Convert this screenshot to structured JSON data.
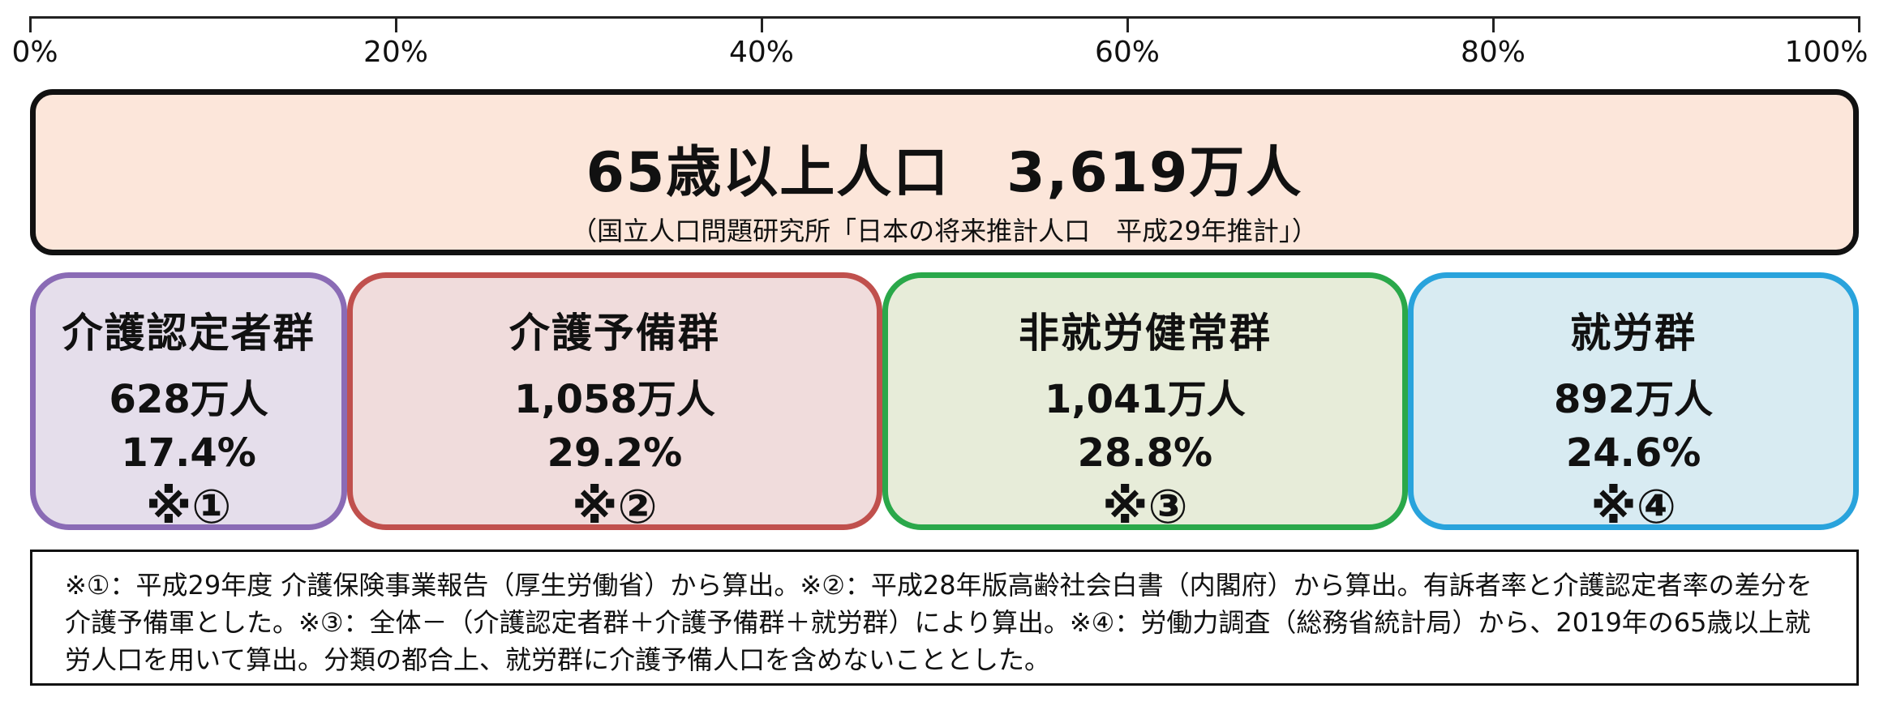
{
  "chart_data": {
    "type": "bar",
    "title": "65歳以上人口　3,619万人",
    "subtitle": "（国立人口問題研究所「日本の将来推計人口　平成29年推計」）",
    "x_ticks": [
      "0%",
      "20%",
      "40%",
      "60%",
      "80%",
      "100%"
    ],
    "xlim": [
      0,
      100
    ],
    "total": 3619,
    "unit": "万人",
    "categories": [
      "介護認定者群",
      "介護予備群",
      "非就労健常群",
      "就労群"
    ],
    "values": [
      628,
      1058,
      1041,
      892
    ],
    "percentages": [
      17.4,
      29.2,
      28.8,
      24.6
    ],
    "segments": [
      {
        "name": "介護認定者群",
        "count_label": "628万人",
        "pct_label": "17.4%",
        "note": "※①",
        "border": "#8a6bb5",
        "fill": "#e5deeb"
      },
      {
        "name": "介護予備群",
        "count_label": "1,058万人",
        "pct_label": "29.2%",
        "note": "※②",
        "border": "#c0504d",
        "fill": "#f0dcdc"
      },
      {
        "name": "非就労健常群",
        "count_label": "1,041万人",
        "pct_label": "28.8%",
        "note": "※③",
        "border": "#2aa84a",
        "fill": "#e7ecd9"
      },
      {
        "name": "就労群",
        "count_label": "892万人",
        "pct_label": "24.6%",
        "note": "※④",
        "border": "#29a3dc",
        "fill": "#d8ebf2"
      }
    ],
    "total_box_fill": "#fce6da"
  },
  "footnote": {
    "line1": "※①：平成29年度 介護保険事業報告（厚生労働省）から算出。※②：平成28年版高齢社会白書（内閣府）から算出。有訴者率と介護認定者率の差分を",
    "line2": "介護予備軍とした。※③：全体－（介護認定者群＋介護予備群＋就労群）により算出。※④：労働力調査（総務省統計局）から、2019年の65歳以上就",
    "line3": "労人口を用いて算出。分類の都合上、就労群に介護予備人口を含めないこととした。"
  }
}
